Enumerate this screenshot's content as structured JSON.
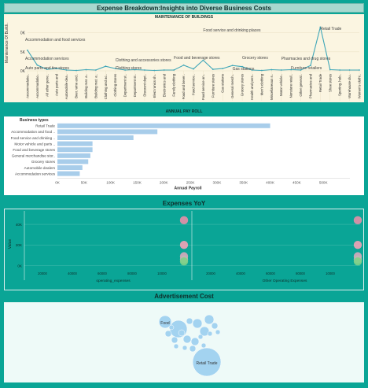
{
  "dashboard": {
    "title": "Expense Breakdown:Insights into Diverse Business Costs"
  },
  "maintenance": {
    "title": "MAINTENANCE OF BUILDINGS",
    "ylabel": "Maintenance Of Buildi..",
    "yticks": [
      "0K",
      "5K",
      "0K"
    ],
    "annotations": [
      "Accommodation and food services",
      "Accommodation services",
      "Auto parts and tire stores",
      "Clothing and accessories stores",
      "Clothing stores",
      "Food and beverage stores",
      "Food service and drinking places",
      "Grocery stores",
      "Gas stations",
      "Pharmacies and drug stores",
      "Furniture retailers",
      "Retail Trade"
    ],
    "categories": [
      "Accommodatio..",
      "Accommodatio..",
      "All other gene..",
      "Auto parts and",
      "Automobile dea..",
      "Beer, wine and..",
      "Building mat. a..",
      "Building mat. a..",
      "Clothing and ac..",
      "Clothing stores",
      "Department st..",
      "Department st..",
      "Discount dept..",
      "Elect ronics sh..",
      "Electronics and",
      "Family clothing",
      "Food and bever..",
      "Food service..",
      "Food service an..",
      "Furniture stores",
      "Gas stations",
      "General merch..",
      "Grocery stores",
      "Health and pers..",
      "Men's clothing",
      "Miscellaneous s..",
      "Motor vehicle..",
      "Nonstore retail..",
      "Other general..",
      "Pharmacies and",
      "Retail Trade",
      "Shoe stores",
      "Sporting, hob..",
      "Warehouse clu..",
      "Women's clothi.."
    ]
  },
  "payroll": {
    "title": "ANNUAL PAY ROLL",
    "ylabel": "Business types",
    "xlabel": "Annual Payroll",
    "xticks": [
      "0K",
      "50K",
      "100K",
      "150K",
      "200K",
      "250K",
      "300K",
      "350K",
      "400K",
      "450K",
      "500K"
    ]
  },
  "yoy": {
    "title": "Expenses YoY",
    "ylabel": "Value",
    "yticks": [
      "40K",
      "20K",
      "0K"
    ],
    "xlabels": [
      "operating_expenses",
      "Other Operating Expenses"
    ],
    "xticks_left": [
      "20000",
      "40000",
      "60000",
      "80000",
      "10000"
    ],
    "xticks_right": [
      "20000",
      "40000",
      "60000",
      "80000",
      "10000"
    ]
  },
  "adcost": {
    "title": "Advertisement Cost",
    "labels": [
      "Food",
      "Retail Trade"
    ]
  },
  "chart_data": [
    {
      "type": "line",
      "title": "MAINTENANCE OF BUILDINGS",
      "xlabel": "",
      "ylabel": "Maintenance Of Buildi..",
      "categories": [
        "Accommodatio..",
        "Accommodatio..",
        "All other gene..",
        "Auto parts and",
        "Automobile dea..",
        "Beer, wine and..",
        "Building mat. a..",
        "Building mat. a..",
        "Clothing and ac..",
        "Clothing stores",
        "Department st..",
        "Department st..",
        "Discount dept..",
        "Elect ronics sh..",
        "Electronics and",
        "Family clothing",
        "Food and bever..",
        "Food service..",
        "Food service an..",
        "Furniture stores",
        "Gas stations",
        "General merch..",
        "Grocery stores",
        "Health and pers..",
        "Men's clothing",
        "Miscellaneous s..",
        "Motor vehicle..",
        "Nonstore retail..",
        "Other general..",
        "Pharmacies and",
        "Retail Trade",
        "Shoe stores",
        "Sporting, hob..",
        "Warehouse clu..",
        "Women's clothi.."
      ],
      "values": [
        5.4,
        1.5,
        0.4,
        0.6,
        0.2,
        0.1,
        0.3,
        0.2,
        1.2,
        0.6,
        0.2,
        0.3,
        0.2,
        0.1,
        0.2,
        0.2,
        1.5,
        0.5,
        2.8,
        0.4,
        0.6,
        1.4,
        1.1,
        0.2,
        0.1,
        0.3,
        0.2,
        0.3,
        0.2,
        1.4,
        11.5,
        0.3,
        0.2,
        0.2,
        0.2
      ],
      "ylim": [
        0,
        12
      ]
    },
    {
      "type": "bar",
      "title": "ANNUAL PAY ROLL",
      "xlabel": "Annual Payroll",
      "ylabel": "Business types",
      "categories": [
        "Retail Trade",
        "Accommodation and food ..",
        "Food service and drinking ..",
        "Motor vehicle and parts ..",
        "Food and beverage stores",
        "General merchandise stor..",
        "Grocery stores",
        "Automobile dealers",
        "Accommodation services"
      ],
      "values": [
        400,
        188,
        143,
        66,
        66,
        62,
        58,
        47,
        42
      ],
      "xlim": [
        0,
        550
      ]
    },
    {
      "type": "scatter",
      "title": "Expenses YoY",
      "ylabel": "Value",
      "series": [
        {
          "name": "operating_expenses",
          "values": [
            44,
            20,
            9,
            6,
            4
          ]
        },
        {
          "name": "Other Operating Expenses",
          "values": [
            44,
            20,
            9,
            6,
            4
          ]
        }
      ],
      "colors": [
        "#e58fa7",
        "#f2a2b6",
        "#d8a8bb",
        "#c2b6b6",
        "#7fd187"
      ],
      "ylim": [
        -2,
        50
      ]
    }
  ]
}
